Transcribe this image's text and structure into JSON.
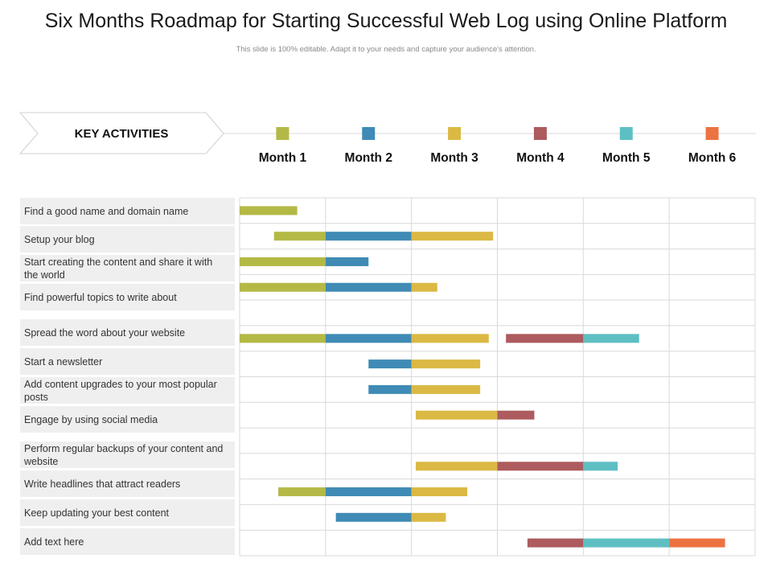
{
  "title": "Six Months Roadmap for Starting Successful Web Log using Online Platform",
  "subtitle": "This slide is 100% editable. Adapt it to your needs and capture your audience's attention.",
  "key_activities_label": "KEY ACTIVITIES",
  "colors": {
    "month1": "#b4b946",
    "month2": "#3f8bb5",
    "month3": "#dbb944",
    "month4": "#ad5b5e",
    "month5": "#5ebfc3",
    "month6": "#ec7341",
    "panel": "#efefef",
    "grid": "#d9d9d9"
  },
  "chart_data": {
    "type": "gantt",
    "title": "Six Months Roadmap for Starting Successful Web Log using Online Platform",
    "x_unit": "months",
    "xlim": [
      0,
      6
    ],
    "months": [
      {
        "label": "Month 1",
        "color": "#b4b946"
      },
      {
        "label": "Month 2",
        "color": "#3f8bb5"
      },
      {
        "label": "Month 3",
        "color": "#dbb944"
      },
      {
        "label": "Month 4",
        "color": "#ad5b5e"
      },
      {
        "label": "Month 5",
        "color": "#5ebfc3"
      },
      {
        "label": "Month 6",
        "color": "#ec7341"
      }
    ],
    "activities": [
      {
        "label": "Find a good name and domain name",
        "start": 0.0,
        "end": 0.67
      },
      {
        "label": "Setup your blog",
        "start": 0.4,
        "end": 2.95
      },
      {
        "label": "Start creating the content and share it with the world",
        "start": 0.0,
        "end": 1.5
      },
      {
        "label": "Find powerful  topics to write about",
        "start": 0.0,
        "end": 2.3
      },
      {
        "label": "Spread the word  about your website",
        "start": 0.0,
        "end": 4.65,
        "gap": [
          2.9,
          3.1
        ]
      },
      {
        "label": "Start a newsletter",
        "start": 1.5,
        "end": 2.8
      },
      {
        "label": "Add content upgrades  to your most popular posts",
        "start": 1.5,
        "end": 2.8
      },
      {
        "label": "Engage by using social media",
        "start": 2.05,
        "end": 3.43
      },
      {
        "label": "Perform regular backups of your content and website",
        "start": 2.05,
        "end": 4.4
      },
      {
        "label": "Write headlines that attract readers",
        "start": 0.45,
        "end": 2.65
      },
      {
        "label": "Keep updating  your best content",
        "start": 1.12,
        "end": 2.4
      },
      {
        "label": "Add text here",
        "start": 3.35,
        "end": 5.65
      }
    ]
  }
}
